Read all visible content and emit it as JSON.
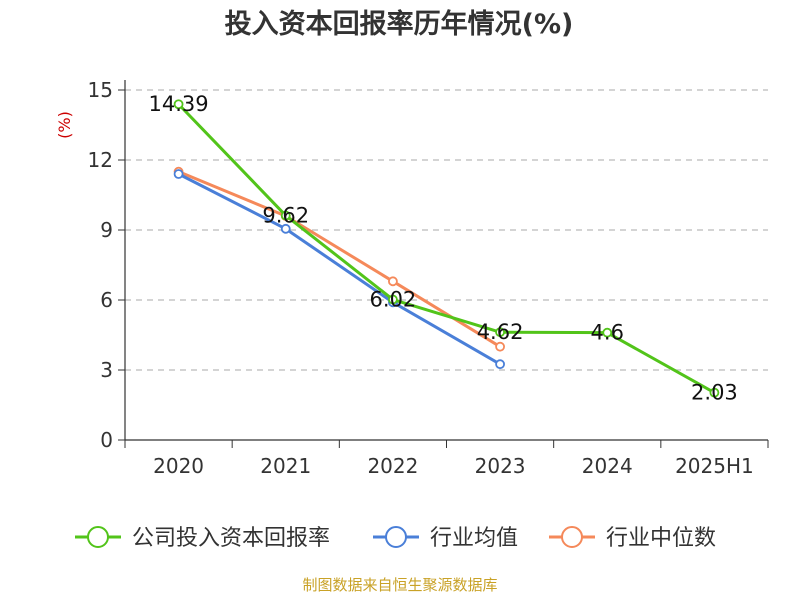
{
  "chart_data": {
    "type": "line",
    "title": "投入资本回报率历年情况(%)",
    "unit_label": "(%)",
    "categories": [
      "2020",
      "2021",
      "2022",
      "2023",
      "2024",
      "2025H1"
    ],
    "ylim": [
      0,
      15
    ],
    "yticks": [
      0,
      3,
      6,
      9,
      12,
      15
    ],
    "grid": true,
    "legend_position": "bottom",
    "series": [
      {
        "name": "公司投入资本回报率",
        "color": "#52c41a",
        "values": [
          14.39,
          9.62,
          6.02,
          4.62,
          4.6,
          2.03
        ],
        "labels": [
          "14.39",
          "9.62",
          "6.02",
          "4.62",
          "4.6",
          "2.03"
        ],
        "show_labels": true
      },
      {
        "name": "行业均值",
        "color": "#4a7fd8",
        "values": [
          11.4,
          9.05,
          5.9,
          3.25,
          null,
          null
        ],
        "show_labels": false
      },
      {
        "name": "行业中位数",
        "color": "#f5895a",
        "values": [
          11.5,
          9.6,
          6.8,
          4.0,
          null,
          null
        ],
        "show_labels": false
      }
    ]
  },
  "source": "制图数据来自恒生聚源数据库"
}
